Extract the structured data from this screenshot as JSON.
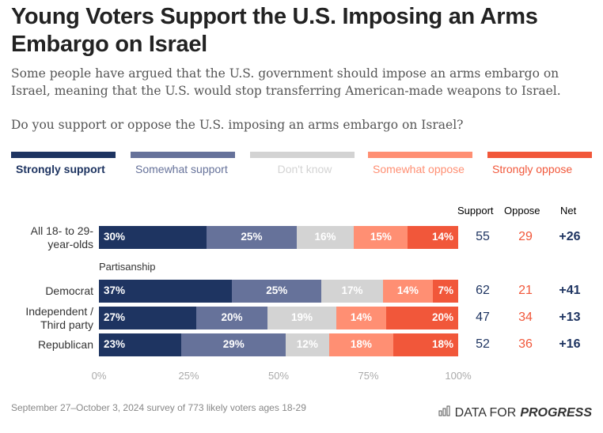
{
  "header": {
    "title": "Young Voters Support the U.S. Imposing an Arms Embargo on Israel",
    "subtitle": "Some people have argued that the U.S. government should impose an arms embargo on Israel, meaning that the U.S. would stop transferring American-made weapons to Israel.",
    "question": "Do you support or oppose the U.S. imposing an arms embargo on Israel?"
  },
  "chart_data": {
    "type": "bar",
    "orientation": "horizontal-stacked",
    "title": "Young Voters Support the U.S. Imposing an Arms Embargo on Israel",
    "xlim": [
      0,
      100
    ],
    "x_ticks": [
      "0%",
      "25%",
      "50%",
      "75%",
      "100%"
    ],
    "legend_position": "top",
    "series": [
      {
        "name": "Strongly support",
        "color": "#1e3461",
        "label_color": "#1e3461"
      },
      {
        "name": "Somewhat support",
        "color": "#66729a",
        "label_color": "#66729a"
      },
      {
        "name": "Don't know",
        "color": "#d3d3d3",
        "label_color": "#d3d3d3"
      },
      {
        "name": "Somewhat oppose",
        "color": "#ff8f73",
        "label_color": "#ff8f73"
      },
      {
        "name": "Strongly oppose",
        "color": "#f1573a",
        "label_color": "#f1573a"
      }
    ],
    "summary_headers": {
      "support": "Support",
      "oppose": "Oppose",
      "net": "Net"
    },
    "section_label": "Partisanship",
    "rows": [
      {
        "label": "All 18- to 29- year-olds",
        "values": [
          30,
          25,
          16,
          15,
          14
        ],
        "support": "55",
        "oppose": "29",
        "net": "+26"
      },
      {
        "label": "Democrat",
        "values": [
          37,
          25,
          17,
          14,
          7
        ],
        "support": "62",
        "oppose": "21",
        "net": "+41"
      },
      {
        "label": "Independent / Third party",
        "values": [
          27,
          20,
          19,
          14,
          20
        ],
        "support": "47",
        "oppose": "34",
        "net": "+13"
      },
      {
        "label": "Republican",
        "values": [
          23,
          29,
          12,
          18,
          18
        ],
        "support": "52",
        "oppose": "36",
        "net": "+16"
      }
    ]
  },
  "footer": {
    "source": "September 27–October 3, 2024 survey of 773 likely voters ages 18-29",
    "logo_regular": "DATA FOR",
    "logo_bold": "PROGRESS"
  }
}
